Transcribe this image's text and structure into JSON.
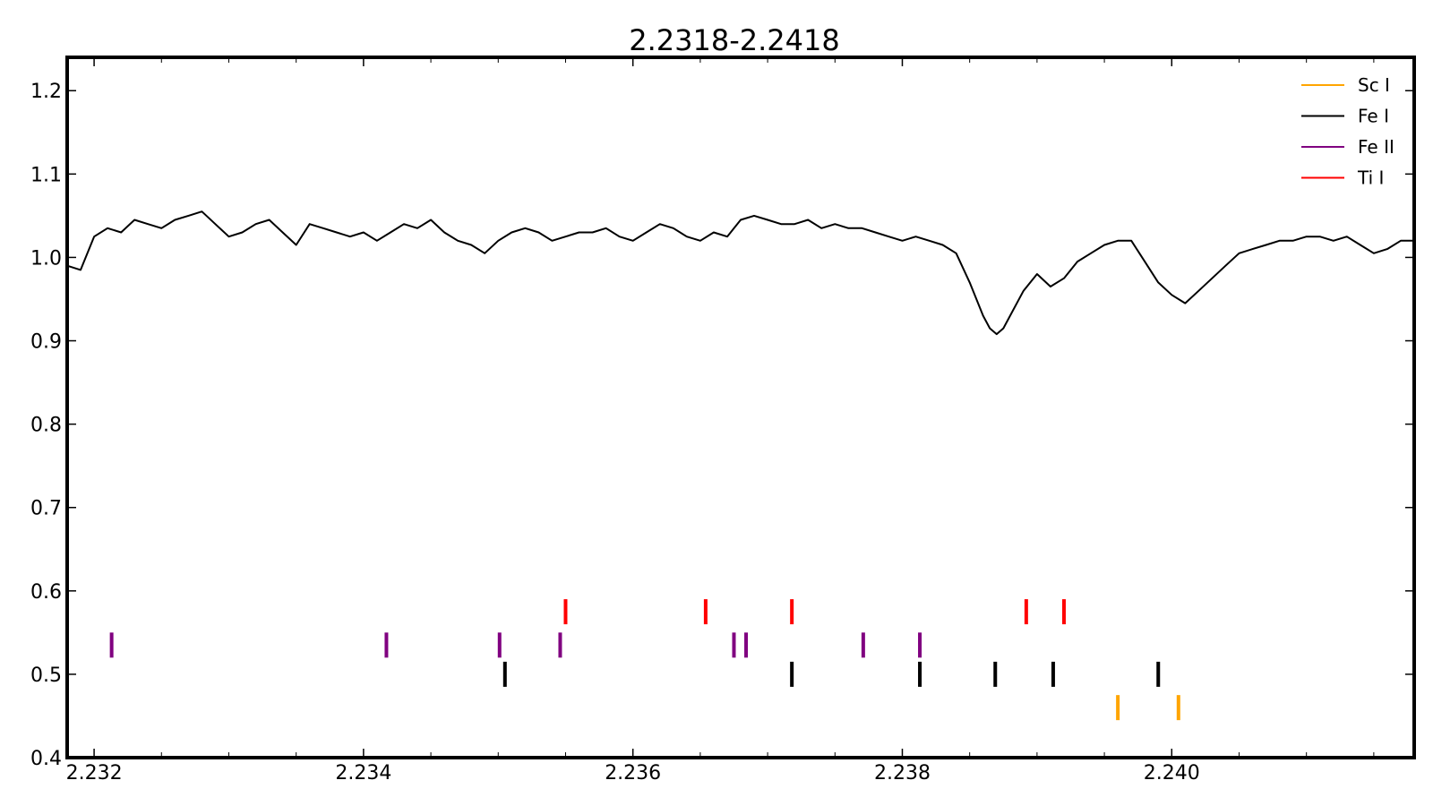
{
  "chart_data": {
    "type": "line",
    "title": "2.2318-2.2418",
    "xlabel": "",
    "ylabel": "",
    "xlim": [
      2.2318,
      2.2418
    ],
    "ylim": [
      0.4,
      1.24
    ],
    "x_ticks": [
      {
        "value": 2.232,
        "label": "2.232"
      },
      {
        "value": 2.234,
        "label": "2.234"
      },
      {
        "value": 2.236,
        "label": "2.236"
      },
      {
        "value": 2.238,
        "label": "2.238"
      },
      {
        "value": 2.24,
        "label": "2.240"
      }
    ],
    "x_minor_ticks": [
      2.2325,
      2.233,
      2.2335,
      2.2345,
      2.235,
      2.2355,
      2.2365,
      2.237,
      2.2375,
      2.2385,
      2.239,
      2.2395,
      2.2405,
      2.241,
      2.2415
    ],
    "y_ticks": [
      {
        "value": 0.4,
        "label": "0.4"
      },
      {
        "value": 0.5,
        "label": "0.5"
      },
      {
        "value": 0.6,
        "label": "0.6"
      },
      {
        "value": 0.7,
        "label": "0.7"
      },
      {
        "value": 0.8,
        "label": "0.8"
      },
      {
        "value": 0.9,
        "label": "0.9"
      },
      {
        "value": 1.0,
        "label": "1.0"
      },
      {
        "value": 1.1,
        "label": "1.1"
      },
      {
        "value": 1.2,
        "label": "1.2"
      }
    ],
    "grid": false,
    "legend_position": "top-right",
    "spectrum": {
      "color": "#000000",
      "x": [
        2.2318,
        2.2319,
        2.232,
        2.2321,
        2.2322,
        2.2323,
        2.2324,
        2.2325,
        2.2326,
        2.2327,
        2.2328,
        2.2329,
        2.233,
        2.2331,
        2.2332,
        2.2333,
        2.2334,
        2.2335,
        2.2336,
        2.2337,
        2.2338,
        2.2339,
        2.234,
        2.2341,
        2.2342,
        2.2343,
        2.2344,
        2.2345,
        2.2346,
        2.2347,
        2.2348,
        2.2349,
        2.235,
        2.2351,
        2.2352,
        2.2353,
        2.2354,
        2.2355,
        2.2356,
        2.2357,
        2.2358,
        2.2359,
        2.236,
        2.2361,
        2.2362,
        2.2363,
        2.2364,
        2.2365,
        2.2366,
        2.2367,
        2.2368,
        2.2369,
        2.237,
        2.2371,
        2.2372,
        2.2373,
        2.2374,
        2.2375,
        2.2376,
        2.2377,
        2.2378,
        2.2379,
        2.238,
        2.2381,
        2.2382,
        2.2383,
        2.2384,
        2.2385,
        2.2386,
        2.23865,
        2.2387,
        2.23875,
        2.2388,
        2.2389,
        2.239,
        2.2391,
        2.2392,
        2.2393,
        2.2394,
        2.2395,
        2.2396,
        2.2397,
        2.2398,
        2.2399,
        2.24,
        2.2401,
        2.2402,
        2.2403,
        2.2404,
        2.2405,
        2.2406,
        2.2407,
        2.2408,
        2.2409,
        2.241,
        2.2411,
        2.2412,
        2.2413,
        2.2414,
        2.2415,
        2.2416,
        2.2417,
        2.2418
      ],
      "y": [
        0.99,
        0.985,
        1.025,
        1.035,
        1.03,
        1.045,
        1.04,
        1.035,
        1.045,
        1.05,
        1.055,
        1.04,
        1.025,
        1.03,
        1.04,
        1.045,
        1.03,
        1.015,
        1.04,
        1.035,
        1.03,
        1.025,
        1.03,
        1.02,
        1.03,
        1.04,
        1.035,
        1.045,
        1.03,
        1.02,
        1.015,
        1.005,
        1.02,
        1.03,
        1.035,
        1.03,
        1.02,
        1.025,
        1.03,
        1.03,
        1.035,
        1.025,
        1.02,
        1.03,
        1.04,
        1.035,
        1.025,
        1.02,
        1.03,
        1.025,
        1.045,
        1.05,
        1.045,
        1.04,
        1.04,
        1.045,
        1.035,
        1.04,
        1.035,
        1.035,
        1.03,
        1.025,
        1.02,
        1.025,
        1.02,
        1.015,
        1.005,
        0.97,
        0.93,
        0.915,
        0.908,
        0.915,
        0.93,
        0.96,
        0.98,
        0.965,
        0.975,
        0.995,
        1.005,
        1.015,
        1.02,
        1.02,
        0.995,
        0.97,
        0.955,
        0.945,
        0.96,
        0.975,
        0.99,
        1.005,
        1.01,
        1.015,
        1.02,
        1.02,
        1.025,
        1.025,
        1.02,
        1.025,
        1.015,
        1.005,
        1.01,
        1.02,
        1.02
      ]
    },
    "series": [
      {
        "name": "Sc I",
        "color": "#ffa500",
        "y": 0.46,
        "lines": [
          2.2396,
          2.24005
        ]
      },
      {
        "name": "Fe I",
        "color": "#000000",
        "y": 0.5,
        "lines": [
          2.23505,
          2.23718,
          2.23813,
          2.23869,
          2.23912,
          2.2399
        ]
      },
      {
        "name": "Fe II",
        "color": "#800080",
        "y": 0.535,
        "lines": [
          2.23213,
          2.23417,
          2.23501,
          2.23546,
          2.23675,
          2.23684,
          2.23771,
          2.23813
        ]
      },
      {
        "name": "Ti I",
        "color": "#ff0000",
        "y": 0.575,
        "lines": [
          2.2355,
          2.23654,
          2.23718,
          2.23892,
          2.2392
        ]
      }
    ]
  }
}
